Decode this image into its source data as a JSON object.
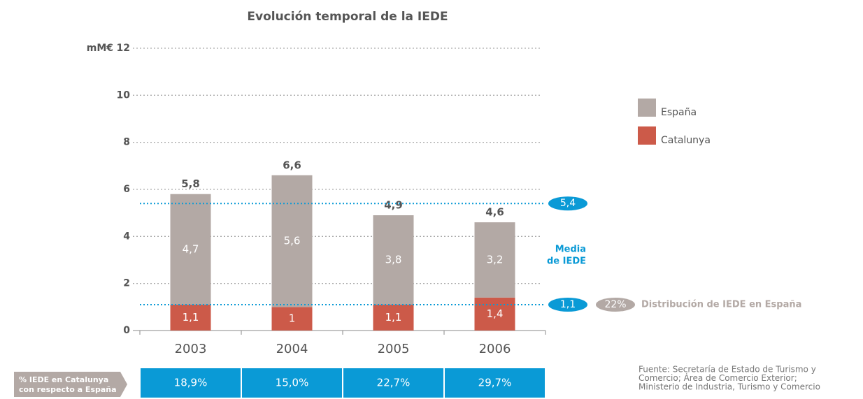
{
  "chart_data": {
    "type": "bar",
    "stacked": true,
    "title": "Evolución temporal de la IEDE",
    "y_axis_label": "mM€",
    "categories": [
      "2003",
      "2004",
      "2005",
      "2006"
    ],
    "series": [
      {
        "name": "Catalunya",
        "color": "#cc5a49",
        "values": [
          1.1,
          1,
          1.1,
          1.4
        ],
        "value_labels": [
          "1,1",
          "1",
          "1,1",
          "1,4"
        ]
      },
      {
        "name": "España",
        "color": "#b3a9a5",
        "values": [
          4.7,
          5.6,
          3.8,
          3.2
        ],
        "value_labels": [
          "4,7",
          "5,6",
          "3,8",
          "3,2"
        ]
      }
    ],
    "totals": {
      "values": [
        5.8,
        6.6,
        4.9,
        4.6
      ],
      "value_labels": [
        "5,8",
        "6,6",
        "4,9",
        "4,6"
      ]
    },
    "reference_lines": [
      {
        "value": 5.4,
        "label": "5,4"
      },
      {
        "value": 1.1,
        "label": "1,1"
      }
    ],
    "reference_title": [
      "Media",
      "de IEDE"
    ],
    "distribution": {
      "value": 22,
      "label": "22%",
      "text": "Distribución de IEDE en España"
    },
    "share": {
      "label": [
        "% IEDE en Catalunya",
        "con respecto a España"
      ],
      "values": [
        18.9,
        15.0,
        22.7,
        29.7
      ],
      "value_labels": [
        "18,9%",
        "15,0%",
        "22,7%",
        "29,7%"
      ],
      "color": "#0a9ad6"
    },
    "reference_color": "#0a9ad6",
    "ylim": [
      0,
      12
    ],
    "yticks": [
      0,
      2,
      4,
      6,
      8,
      10,
      12
    ],
    "grid": true,
    "source": [
      "Fuente: Secretaría de Estado de Turismo y",
      "Comercio; Área de Comercio Exterior;",
      "Ministerio de Industria, Turismo y Comercio"
    ]
  }
}
